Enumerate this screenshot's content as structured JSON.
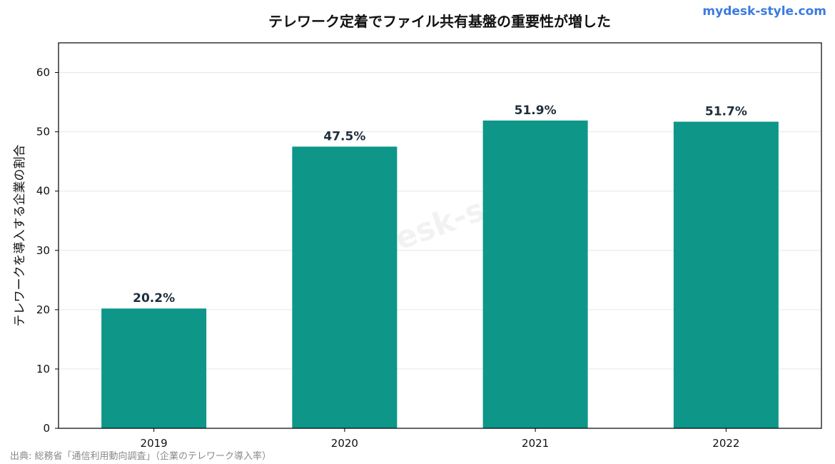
{
  "brand": "mydesk-style.com",
  "watermark": "mydesk-style",
  "source": "出典: 総務省「通信利用動向調査」（企業のテレワーク導入率）",
  "colors": {
    "bar": "#0e9689",
    "label": "#1f2d3d",
    "brand": "#3b7be0"
  },
  "chart_data": {
    "type": "bar",
    "title": "テレワーク定着でファイル共有基盤の重要性が増した",
    "xlabel": "",
    "ylabel": "テレワークを導入する企業の割合",
    "categories": [
      "2019",
      "2020",
      "2021",
      "2022"
    ],
    "values": [
      20.2,
      47.5,
      51.9,
      51.7
    ],
    "data_labels": [
      "20.2%",
      "47.5%",
      "51.9%",
      "51.7%"
    ],
    "ylim": [
      0,
      65
    ],
    "yticks": [
      0,
      10,
      20,
      30,
      40,
      50,
      60
    ],
    "grid": "horizontal",
    "legend": "none"
  }
}
